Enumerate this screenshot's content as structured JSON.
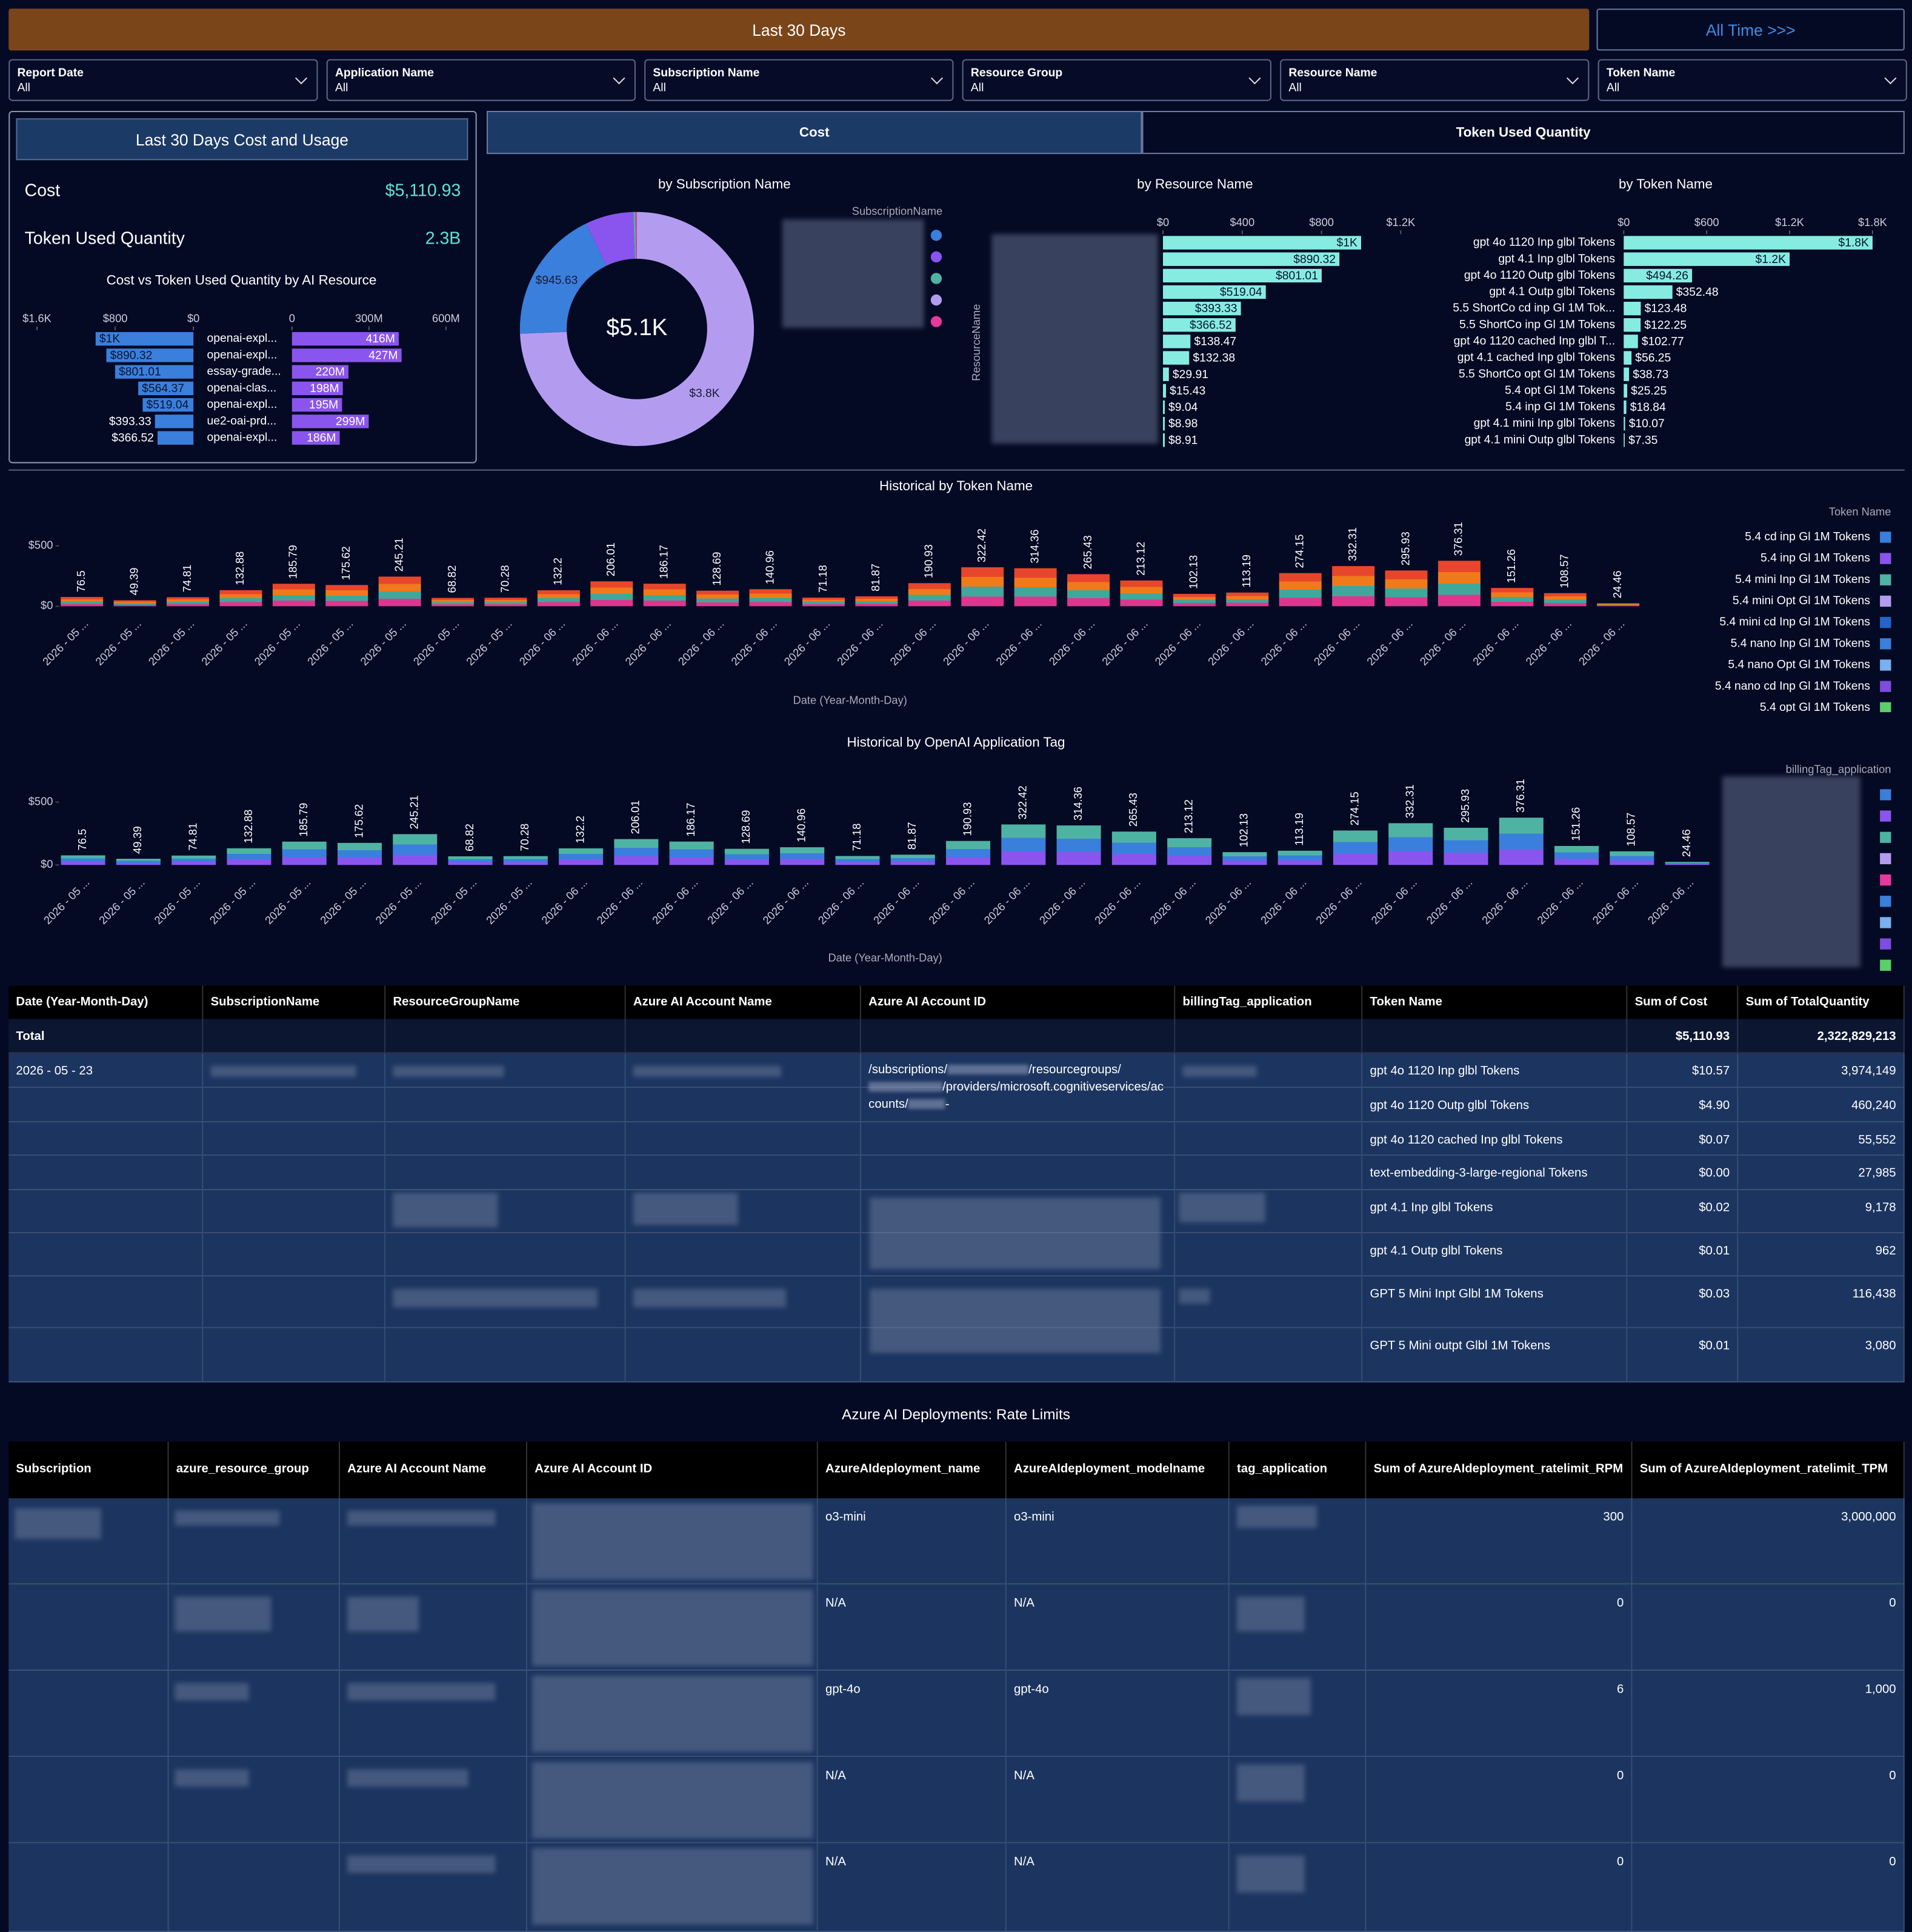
{
  "header": {
    "active": "Last 30 Days",
    "link": "All Time >>>"
  },
  "filters": [
    {
      "label": "Report Date",
      "value": "All"
    },
    {
      "label": "Application Name",
      "value": "All"
    },
    {
      "label": "Subscription Name",
      "value": "All"
    },
    {
      "label": "Resource Group",
      "value": "All"
    },
    {
      "label": "Resource Name",
      "value": "All"
    },
    {
      "label": "Token Name",
      "value": "All"
    }
  ],
  "summary": {
    "title": "Last 30 Days Cost and Usage",
    "items": [
      {
        "label": "Cost",
        "value": "$5,110.93"
      },
      {
        "label": "Token Used Quantity",
        "value": "2.3B"
      }
    ]
  },
  "tabs": [
    "Cost",
    "Token Used Quantity"
  ],
  "chart_data": [
    {
      "type": "bar",
      "orientation": "horizontal",
      "title": "Cost vs Token Used Quantity by AI Resource",
      "categories": [
        "openai-expl...",
        "openai-expl...",
        "essay-grade...",
        "openai-clas...",
        "openai-expl...",
        "ue2-oai-prd...",
        "openai-expl..."
      ],
      "values": [
        1000,
        890.32,
        801.01,
        564.37,
        519.04,
        393.33,
        366.52
      ],
      "value_labels": [
        "$1K",
        "$890.32",
        "$801.01",
        "$564.37",
        "$519.04",
        "$393.33",
        "$366.52"
      ],
      "color": "#3a7fdc",
      "xlim": [
        0,
        1600
      ],
      "x_reversed": true,
      "xticks": [
        {
          "value": 1600,
          "label": "$1.6K"
        },
        {
          "value": 800,
          "label": "$800"
        },
        {
          "value": 0,
          "label": "$0"
        }
      ]
    },
    {
      "type": "bar",
      "orientation": "horizontal",
      "values": [
        416000000,
        427000000,
        220000000,
        198000000,
        195000000,
        299000000,
        186000000
      ],
      "value_labels": [
        "416M",
        "427M",
        "220M",
        "198M",
        "195M",
        "299M",
        "186M"
      ],
      "color": "#8a55ee",
      "xlim": [
        0,
        600000000
      ],
      "xticks": [
        0,
        {
          "value": 300000000,
          "label": "300M"
        },
        {
          "value": 600000000,
          "label": "600M"
        }
      ]
    },
    {
      "type": "pie",
      "donut": true,
      "title": "by Subscription Name",
      "values": [
        3800,
        945.63,
        340,
        15,
        10.3
      ],
      "value_labels": [
        "$3.8K",
        "$945.63",
        null,
        null,
        null
      ],
      "colors": [
        "#b39cf0",
        "#3a7fdc",
        "#8a55ee",
        "#4fb3a3",
        "#e6399b"
      ],
      "center_label": "$5.1K",
      "legend_title": "SubscriptionName",
      "legend_colors": [
        "#3a7fdc",
        "#8a55ee",
        "#4fb3a3",
        "#b39cf0",
        "#e6399b"
      ]
    },
    {
      "type": "bar",
      "orientation": "horizontal",
      "title": "by Resource Name",
      "y_label": "ResourceName",
      "categories": [
        null,
        null,
        null,
        null,
        null,
        null,
        null,
        null,
        null,
        null,
        null,
        null,
        null
      ],
      "values": [
        1000,
        890.32,
        801.01,
        519.04,
        393.33,
        366.52,
        138.47,
        132.38,
        29.91,
        15.43,
        9.04,
        8.98,
        8.91
      ],
      "value_labels": [
        "$1K",
        "$890.32",
        "$801.01",
        "$519.04",
        "$393.33",
        "$366.52",
        "$138.47",
        "$132.38",
        "$29.91",
        "$15.43",
        "$9.04",
        "$8.98",
        "$8.91"
      ],
      "color": "#86ece2",
      "xlim": [
        0,
        1200
      ],
      "xticks": [
        {
          "value": 0,
          "label": "$0"
        },
        {
          "value": 400,
          "label": "$400"
        },
        {
          "value": 800,
          "label": "$800"
        },
        {
          "value": 1200,
          "label": "$1.2K"
        }
      ]
    },
    {
      "type": "bar",
      "orientation": "horizontal",
      "title": "by Token Name",
      "categories": [
        "gpt 4o 1120 Inp glbl Tokens",
        "gpt 4.1 Inp glbl Tokens",
        "gpt 4o 1120 Outp glbl Tokens",
        "gpt 4.1 Outp glbl Tokens",
        "5.5 ShortCo cd inp Gl 1M Tok...",
        "5.5 ShortCo inp Gl 1M Tokens",
        "gpt 4o 1120 cached Inp glbl T...",
        "gpt 4.1 cached Inp glbl Tokens",
        "5.5 ShortCo opt Gl 1M Tokens",
        "5.4 opt Gl 1M Tokens",
        "5.4 inp Gl 1M Tokens",
        "gpt 4.1 mini Inp glbl Tokens",
        "gpt 4.1 mini Outp glbl Tokens"
      ],
      "values": [
        1800,
        1200,
        494.26,
        352.48,
        123.48,
        122.25,
        102.77,
        56.25,
        38.73,
        25.25,
        18.84,
        10.07,
        7.35
      ],
      "value_labels": [
        "$1.8K",
        "$1.2K",
        "$494.26",
        "$352.48",
        "$123.48",
        "$122.25",
        "$102.77",
        "$56.25",
        "$38.73",
        "$25.25",
        "$18.84",
        "$10.07",
        "$7.35"
      ],
      "color": "#86ece2",
      "xlim": [
        0,
        1800
      ],
      "xticks": [
        {
          "value": 0,
          "label": "$0"
        },
        {
          "value": 600,
          "label": "$600"
        },
        {
          "value": 1200,
          "label": "$1.2K"
        },
        {
          "value": 1800,
          "label": "$1.8K"
        }
      ]
    },
    {
      "type": "bar",
      "title": "Historical by Token Name",
      "x_label": "Date (Year-Month-Day)",
      "categories": [
        "2026 - 05 ...",
        "2026 - 05 ...",
        "2026 - 05 ...",
        "2026 - 05 ...",
        "2026 - 05 ...",
        "2026 - 05 ...",
        "2026 - 05 ...",
        "2026 - 05 ...",
        "2026 - 05 ...",
        "2026 - 06 ...",
        "2026 - 06 ...",
        "2026 - 06 ...",
        "2026 - 06 ...",
        "2026 - 06 ...",
        "2026 - 06 ...",
        "2026 - 06 ...",
        "2026 - 06 ...",
        "2026 - 06 ...",
        "2026 - 06 ...",
        "2026 - 06 ...",
        "2026 - 06 ...",
        "2026 - 06 ...",
        "2026 - 06 ...",
        "2026 - 06 ...",
        "2026 - 06 ...",
        "2026 - 06 ...",
        "2026 - 06 ...",
        "2026 - 06 ...",
        "2026 - 06 ...",
        "2026 - 06 ..."
      ],
      "values": [
        76.5,
        49.39,
        74.81,
        132.88,
        185.79,
        175.62,
        245.21,
        68.82,
        70.28,
        132.2,
        206.01,
        186.17,
        128.69,
        140.96,
        71.18,
        81.87,
        190.93,
        322.42,
        314.36,
        265.43,
        213.12,
        102.13,
        113.19,
        274.15,
        332.31,
        295.93,
        376.31,
        151.26,
        108.57,
        24.46
      ],
      "colors": [
        "#e0358f",
        "#3fa89b",
        "#f07a1a",
        "#e8462c"
      ],
      "ylim": [
        0,
        700
      ],
      "yticks": [
        {
          "value": 0,
          "label": "$0"
        },
        {
          "value": 500,
          "label": "$500"
        }
      ],
      "legend_title": "Token Name",
      "legend": [
        {
          "name": "5.4 cd inp Gl 1M Tokens",
          "color": "#3a7fdc"
        },
        {
          "name": "5.4 inp Gl 1M Tokens",
          "color": "#8a55ee"
        },
        {
          "name": "5.4 mini Inp Gl 1M Tokens",
          "color": "#4fb3a3"
        },
        {
          "name": "5.4 mini Opt Gl 1M Tokens",
          "color": "#b39cf0"
        },
        {
          "name": "5.4 mini cd Inp Gl 1M Tokens",
          "color": "#2563c9"
        },
        {
          "name": "5.4 nano Inp Gl 1M Tokens",
          "color": "#3a7fdc"
        },
        {
          "name": "5.4 nano Opt Gl 1M Tokens",
          "color": "#7ab0f0"
        },
        {
          "name": "5.4 nano cd Inp Gl 1M Tokens",
          "color": "#7c4ddf"
        },
        {
          "name": "5.4 opt Gl 1M Tokens",
          "color": "#5bcf6a"
        }
      ]
    },
    {
      "type": "bar",
      "title": "Historical by OpenAI Application Tag",
      "x_label": "Date (Year-Month-Day)",
      "categories": [
        "2026 - 05 ...",
        "2026 - 05 ...",
        "2026 - 05 ...",
        "2026 - 05 ...",
        "2026 - 05 ...",
        "2026 - 05 ...",
        "2026 - 05 ...",
        "2026 - 05 ...",
        "2026 - 05 ...",
        "2026 - 06 ...",
        "2026 - 06 ...",
        "2026 - 06 ...",
        "2026 - 06 ...",
        "2026 - 06 ...",
        "2026 - 06 ...",
        "2026 - 06 ...",
        "2026 - 06 ...",
        "2026 - 06 ...",
        "2026 - 06 ...",
        "2026 - 06 ...",
        "2026 - 06 ...",
        "2026 - 06 ...",
        "2026 - 06 ...",
        "2026 - 06 ...",
        "2026 - 06 ...",
        "2026 - 06 ...",
        "2026 - 06 ...",
        "2026 - 06 ...",
        "2026 - 06 ...",
        "2026 - 06 ..."
      ],
      "values": [
        76.5,
        49.39,
        74.81,
        132.88,
        185.79,
        175.62,
        245.21,
        68.82,
        70.28,
        132.2,
        206.01,
        186.17,
        128.69,
        140.96,
        71.18,
        81.87,
        190.93,
        322.42,
        314.36,
        265.43,
        213.12,
        102.13,
        113.19,
        274.15,
        332.31,
        295.93,
        376.31,
        151.26,
        108.57,
        24.46
      ],
      "colors": [
        "#8a55ee",
        "#3a7fdc",
        "#4fb3a3"
      ],
      "ylim": [
        0,
        700
      ],
      "yticks": [
        {
          "value": 0,
          "label": "$0"
        },
        {
          "value": 500,
          "label": "$500"
        }
      ],
      "legend_title": "billingTag_application",
      "legend_colors": [
        "#3a7fdc",
        "#8a55ee",
        "#4fb3a3",
        "#b39cf0",
        "#e6399b",
        "#3a7fdc",
        "#7ab0f0",
        "#7c4ddf",
        "#5bcf6a"
      ]
    }
  ],
  "table": {
    "columns": [
      "Date (Year-Month-Day)",
      "SubscriptionName",
      "ResourceGroupName",
      "Azure AI Account Name",
      "Azure AI Account ID",
      "billingTag_application",
      "Token Name",
      "Sum of Cost",
      "Sum of TotalQuantity"
    ],
    "total": [
      "Total",
      null,
      null,
      null,
      null,
      null,
      null,
      "$5,110.93",
      "2,322,829,213"
    ],
    "account_id_parts": [
      "/subscriptions/",
      "/resourcegroups/",
      "/providers/microsoft.cognitiveservices/accounts/",
      "-"
    ],
    "rows": [
      [
        "2026 - 05 - 23",
        null,
        null,
        null,
        null,
        null,
        "gpt 4o 1120 Inp glbl Tokens",
        "$10.57",
        "3,974,149"
      ],
      [
        null,
        null,
        null,
        null,
        null,
        null,
        "gpt 4o 1120 Outp glbl Tokens",
        "$4.90",
        "460,240"
      ],
      [
        null,
        null,
        null,
        null,
        null,
        null,
        "gpt 4o 1120 cached Inp glbl Tokens",
        "$0.07",
        "55,552"
      ],
      [
        null,
        null,
        null,
        null,
        null,
        null,
        "text-embedding-3-large-regional Tokens",
        "$0.00",
        "27,985"
      ],
      [
        null,
        null,
        null,
        null,
        null,
        null,
        "gpt 4.1 Inp glbl Tokens",
        "$0.02",
        "9,178"
      ],
      [
        null,
        null,
        null,
        null,
        null,
        null,
        "gpt 4.1 Outp glbl Tokens",
        "$0.01",
        "962"
      ],
      [
        null,
        null,
        null,
        null,
        null,
        null,
        "GPT 5 Mini Inpt Glbl 1M Tokens",
        "$0.03",
        "116,438"
      ],
      [
        null,
        null,
        null,
        null,
        null,
        null,
        "GPT 5 Mini outpt Glbl 1M Tokens",
        "$0.01",
        "3,080"
      ]
    ]
  },
  "rate_limits": {
    "title": "Azure AI Deployments: Rate Limits",
    "columns": [
      "Subscription",
      "azure_resource_group",
      "Azure AI Account Name",
      "Azure AI Account ID",
      "AzureAIdeployment_name",
      "AzureAIdeployment_modelname",
      "tag_application",
      "Sum of AzureAIdeployment_ratelimit_RPM",
      "Sum of AzureAIdeployment_ratelimit_TPM"
    ],
    "rows": [
      [
        null,
        null,
        null,
        null,
        "o3-mini",
        "o3-mini",
        null,
        "300",
        "3,000,000"
      ],
      [
        null,
        null,
        null,
        null,
        "N/A",
        "N/A",
        null,
        "0",
        "0"
      ],
      [
        null,
        null,
        null,
        null,
        "gpt-4o",
        "gpt-4o",
        null,
        "6",
        "1,000"
      ],
      [
        null,
        null,
        null,
        null,
        "N/A",
        "N/A",
        null,
        "0",
        "0"
      ],
      [
        null,
        null,
        null,
        null,
        "N/A",
        "N/A",
        null,
        "0",
        "0"
      ]
    ]
  }
}
